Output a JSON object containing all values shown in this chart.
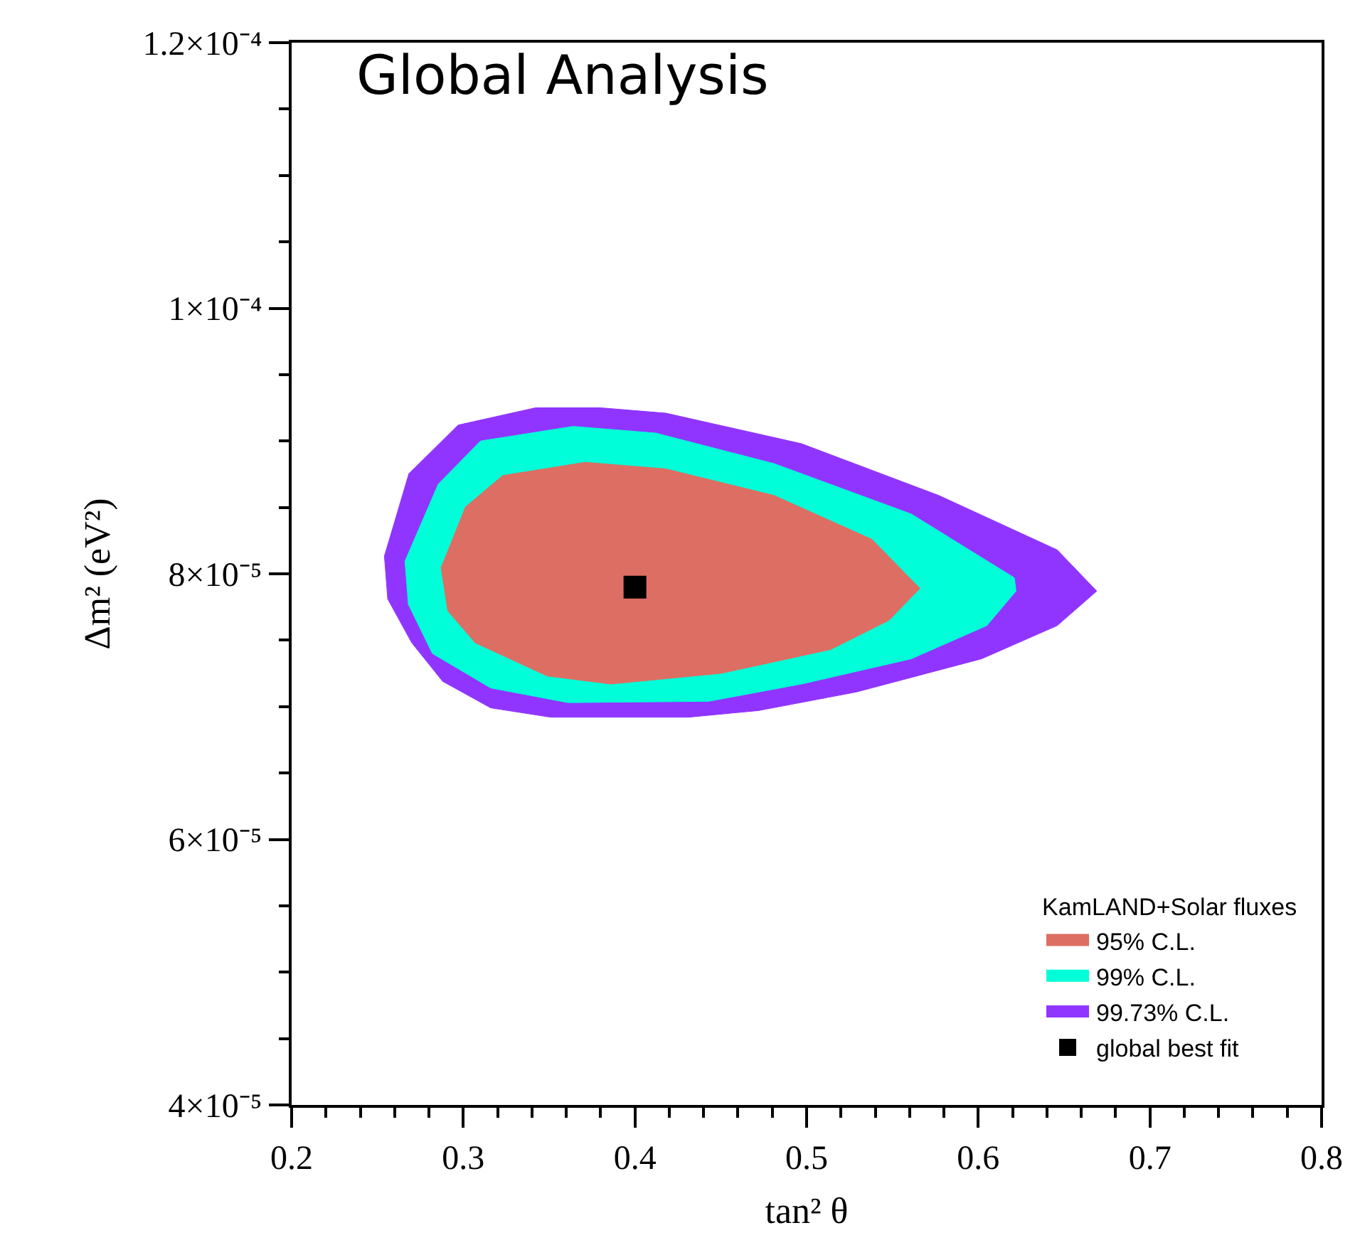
{
  "chart_data": {
    "type": "area",
    "title": "Global Analysis",
    "xlabel": "tan² θ",
    "ylabel": "Δm² (eV²)",
    "legend_title": "KamLAND+Solar fluxes",
    "legend": "bottom right",
    "xlim": [
      0.2,
      0.8
    ],
    "xticks": [
      0.2,
      0.3,
      0.4,
      0.5,
      0.6,
      0.7,
      0.8
    ],
    "ylim": [
      4e-05,
      0.00012
    ],
    "yticks": [
      {
        "value": 4e-05,
        "label": "4×10⁻⁵"
      },
      {
        "value": 6e-05,
        "label": "6×10⁻⁵"
      },
      {
        "value": 8e-05,
        "label": "8×10⁻⁵"
      },
      {
        "value": 0.0001,
        "label": "1×10⁻⁴"
      },
      {
        "value": 0.00012,
        "label": "1.2×10⁻⁴"
      }
    ],
    "series": [
      {
        "name": "95% C.L.",
        "color": "#dd6e63",
        "x": [
          0.287,
          0.291,
          0.307,
          0.349,
          0.386,
          0.45,
          0.514,
          0.548,
          0.566,
          0.538,
          0.481,
          0.418,
          0.371,
          0.323,
          0.301
        ],
        "values": [
          8.05e-05,
          7.72e-05,
          7.48e-05,
          7.23e-05,
          7.17e-05,
          7.25e-05,
          7.43e-05,
          7.65e-05,
          7.89e-05,
          8.26e-05,
          8.59e-05,
          8.79e-05,
          8.84e-05,
          8.74e-05,
          8.5e-05
        ]
      },
      {
        "name": "99% C.L.",
        "color": "#00ffd8",
        "x": [
          0.266,
          0.268,
          0.282,
          0.316,
          0.361,
          0.443,
          0.497,
          0.561,
          0.605,
          0.622,
          0.621,
          0.561,
          0.481,
          0.412,
          0.364,
          0.31,
          0.285
        ],
        "values": [
          8.1e-05,
          7.77e-05,
          7.4e-05,
          7.14e-05,
          7.03e-05,
          7.04e-05,
          7.17e-05,
          7.36e-05,
          7.61e-05,
          7.87e-05,
          7.97e-05,
          8.45e-05,
          8.83e-05,
          9.06e-05,
          9.11e-05,
          9e-05,
          8.67e-05
        ]
      },
      {
        "name": "99.73% C.L.",
        "color": "#9035ff",
        "x": [
          0.254,
          0.256,
          0.27,
          0.288,
          0.316,
          0.351,
          0.431,
          0.472,
          0.529,
          0.602,
          0.646,
          0.669,
          0.646,
          0.577,
          0.497,
          0.418,
          0.38,
          0.342,
          0.297,
          0.268
        ],
        "values": [
          8.14e-05,
          7.81e-05,
          7.48e-05,
          7.19e-05,
          6.99e-05,
          6.92e-05,
          6.92e-05,
          6.97e-05,
          7.11e-05,
          7.36e-05,
          7.61e-05,
          7.87e-05,
          8.18e-05,
          8.59e-05,
          8.98e-05,
          9.21e-05,
          9.25e-05,
          9.25e-05,
          9.12e-05,
          8.75e-05
        ]
      },
      {
        "name": "global best fit",
        "type": "scatter",
        "marker": "square",
        "color": "#000000",
        "x": [
          0.4
        ],
        "values": [
          7.9e-05
        ]
      }
    ]
  }
}
